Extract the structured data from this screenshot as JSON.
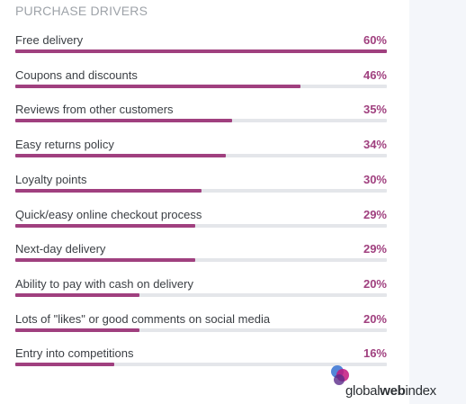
{
  "chart_data": {
    "type": "bar",
    "orientation": "horizontal",
    "title": "PURCHASE DRIVERS",
    "categories": [
      "Free delivery",
      "Coupons and discounts",
      "Reviews from other customers",
      "Easy returns policy",
      "Loyalty points",
      "Quick/easy online checkout process",
      "Next-day delivery",
      "Ability to pay with cash on delivery",
      "Lots of \"likes\" or good comments on social media",
      "Entry into competitions"
    ],
    "values": [
      60,
      46,
      35,
      34,
      30,
      29,
      29,
      20,
      20,
      16
    ],
    "value_labels": [
      "60%",
      "46%",
      "35%",
      "34%",
      "30%",
      "29%",
      "29%",
      "20%",
      "20%",
      "16%"
    ],
    "xlim": [
      0,
      60
    ],
    "unit": "%",
    "bar_color": "#a0407f",
    "track_color": "#e4e6ea"
  },
  "brand": {
    "part1": "global",
    "part2": "web",
    "part3": "index"
  }
}
